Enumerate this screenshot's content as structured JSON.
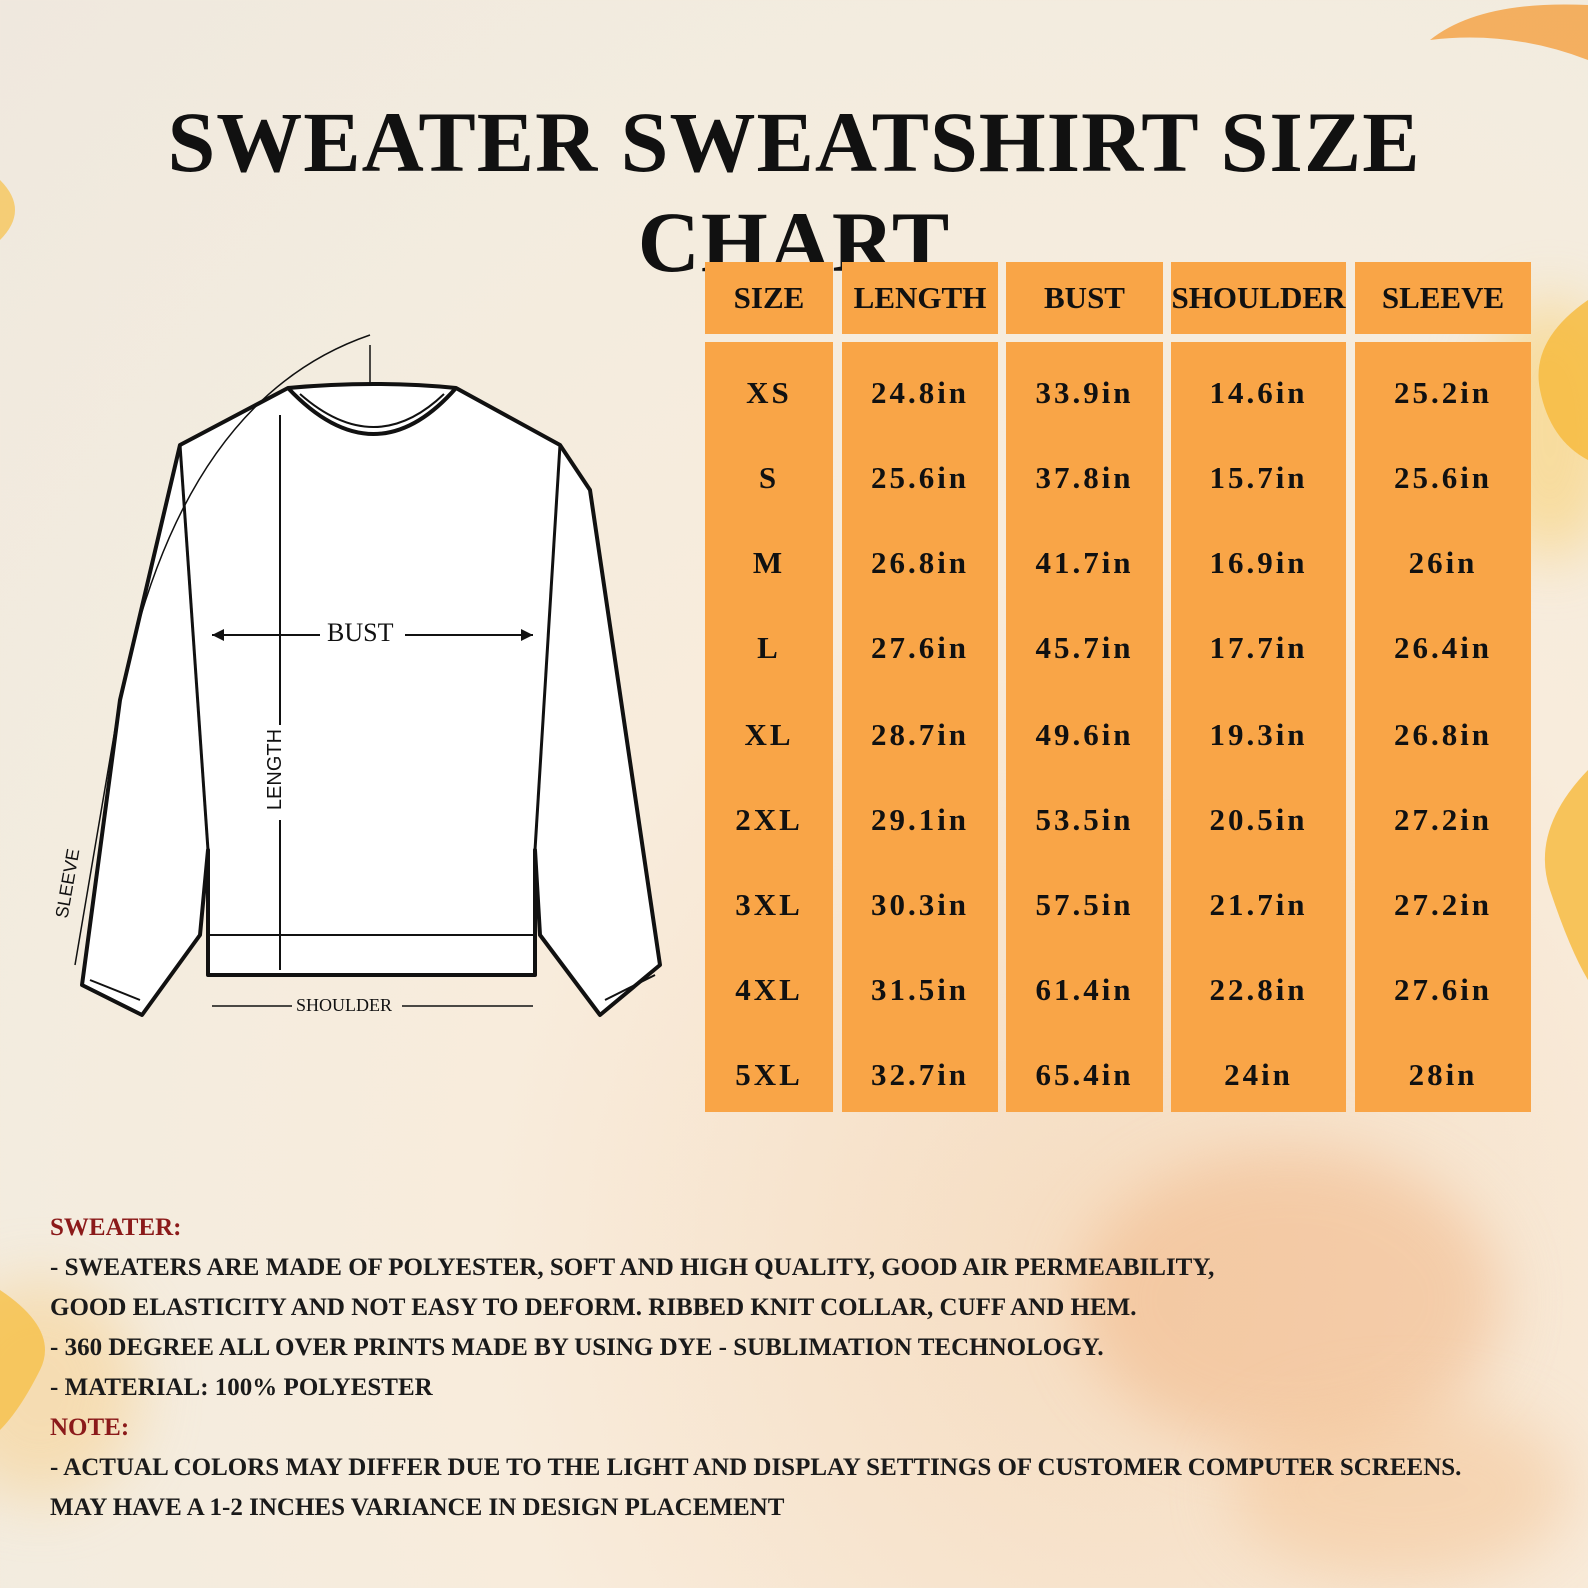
{
  "title": "SWEATER SWEATSHIRT SIZE CHART",
  "diagram": {
    "bust_label": "BUST",
    "length_label": "LENGTH",
    "sleeve_label": "SLEEVE",
    "shoulder_label": "SHOULDER"
  },
  "table": {
    "headers": [
      "SIZE",
      "LENGTH",
      "BUST",
      "SHOULDER",
      "SLEEVE"
    ],
    "columns": [
      [
        "XS",
        "S",
        "M",
        "L",
        "XL",
        "2XL",
        "3XL",
        "4XL",
        "5XL"
      ],
      [
        "24.8in",
        "25.6in",
        "26.8in",
        "27.6in",
        "28.7in",
        "29.1in",
        "30.3in",
        "31.5in",
        "32.7in"
      ],
      [
        "33.9in",
        "37.8in",
        "41.7in",
        "45.7in",
        "49.6in",
        "53.5in",
        "57.5in",
        "61.4in",
        "65.4in"
      ],
      [
        "14.6in",
        "15.7in",
        "16.9in",
        "17.7in",
        "19.3in",
        "20.5in",
        "21.7in",
        "22.8in",
        "24in"
      ],
      [
        "25.2in",
        "25.6in",
        "26in",
        "26.4in",
        "26.8in",
        "27.2in",
        "27.2in",
        "27.6in",
        "28in"
      ]
    ]
  },
  "notes": {
    "sweater_header": "SWEATER:",
    "line1": "- SWEATERS ARE MADE OF POLYESTER, SOFT AND HIGH QUALITY, GOOD AIR PERMEABILITY,",
    "line2": "GOOD ELASTICITY AND NOT EASY TO DEFORM. RIBBED KNIT COLLAR, CUFF AND HEM.",
    "line3": "- 360 DEGREE ALL OVER PRINTS MADE BY USING DYE - SUBLIMATION TECHNOLOGY.",
    "line4": "- MATERIAL: 100% POLYESTER",
    "note_header": "NOTE:",
    "line5": "- ACTUAL COLORS MAY DIFFER DUE TO THE LIGHT AND DISPLAY SETTINGS OF CUSTOMER COMPUTER SCREENS.",
    "line6": "MAY HAVE A 1-2 INCHES VARIANCE IN DESIGN PLACEMENT"
  },
  "colors": {
    "table_orange": "#f9a547",
    "note_header_red": "#8b1a1a",
    "text_black": "#111111"
  }
}
